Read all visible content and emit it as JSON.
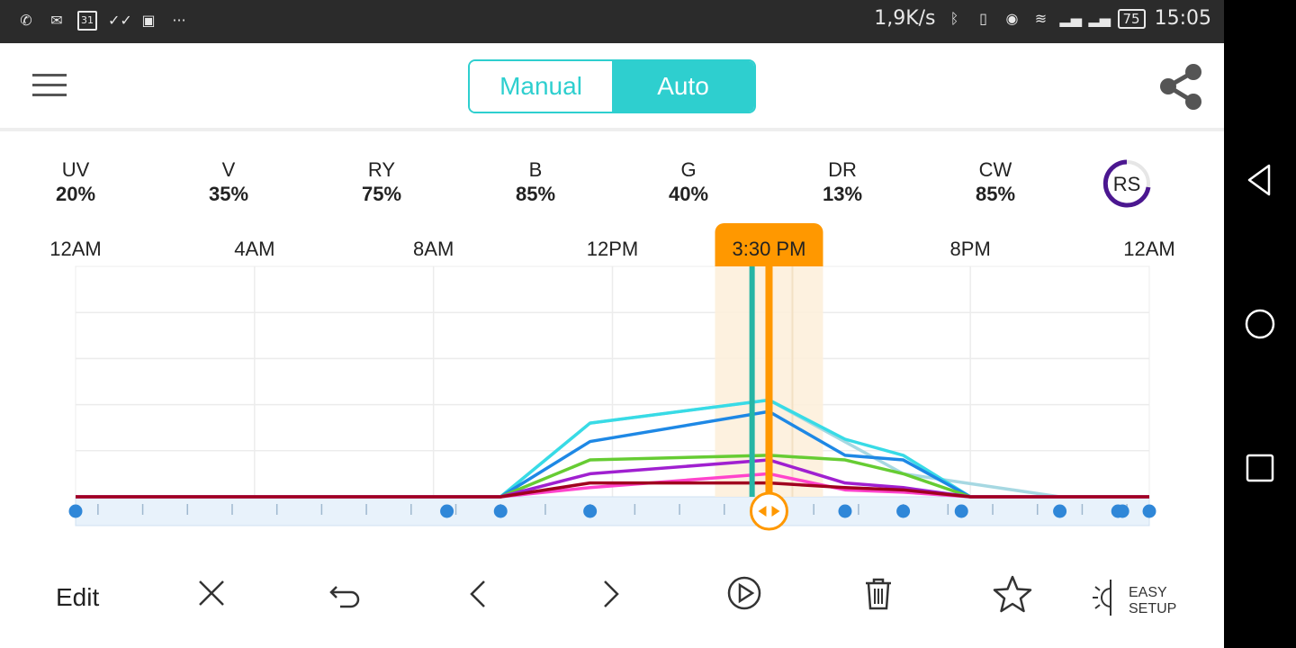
{
  "status_bar": {
    "left_icons": [
      "phone-wifi-icon",
      "mail-check-icon",
      "calendar-31-icon",
      "double-check-icon",
      "calendar-icon",
      "more-dots-icon"
    ],
    "calendar_day": "31",
    "net_speed": "1,9K/s",
    "battery": "75",
    "time": "15:05"
  },
  "app_bar": {
    "mode_manual": "Manual",
    "mode_auto": "Auto",
    "selected_mode": "Auto",
    "accent_color": "#2ecfcf"
  },
  "channels": [
    {
      "name": "UV",
      "value": "20%"
    },
    {
      "name": "V",
      "value": "35%"
    },
    {
      "name": "RY",
      "value": "75%"
    },
    {
      "name": "B",
      "value": "85%"
    },
    {
      "name": "G",
      "value": "40%"
    },
    {
      "name": "DR",
      "value": "13%"
    },
    {
      "name": "CW",
      "value": "85%"
    }
  ],
  "rs_badge": "RS",
  "chart_data": {
    "type": "line",
    "x_ticks": [
      "12AM",
      "4AM",
      "8AM",
      "12PM",
      "8PM",
      "12AM"
    ],
    "cursor_time": "3:30 PM",
    "y_range": [
      0,
      100
    ],
    "series": [
      {
        "color": "#a6d8e2",
        "points": [
          [
            0,
            0
          ],
          [
            9.5,
            0
          ],
          [
            11.5,
            32
          ],
          [
            15.5,
            42
          ],
          [
            18.5,
            10
          ],
          [
            22,
            0
          ],
          [
            24,
            0
          ]
        ]
      },
      {
        "color": "#38dbe6",
        "points": [
          [
            0,
            0
          ],
          [
            9.5,
            0
          ],
          [
            11.5,
            32
          ],
          [
            15.5,
            42
          ],
          [
            17.2,
            25
          ],
          [
            18.5,
            18
          ],
          [
            20,
            0
          ],
          [
            24,
            0
          ]
        ]
      },
      {
        "color": "#1e88e5",
        "points": [
          [
            0,
            0
          ],
          [
            9.5,
            0
          ],
          [
            11.5,
            24
          ],
          [
            15.5,
            37
          ],
          [
            17.2,
            18
          ],
          [
            18.5,
            16
          ],
          [
            20,
            0
          ],
          [
            24,
            0
          ]
        ]
      },
      {
        "color": "#66cc33",
        "points": [
          [
            0,
            0
          ],
          [
            9.5,
            0
          ],
          [
            11.5,
            16
          ],
          [
            15.5,
            18
          ],
          [
            17.2,
            16
          ],
          [
            18.5,
            10
          ],
          [
            20,
            0
          ],
          [
            24,
            0
          ]
        ]
      },
      {
        "color": "#a020d0",
        "points": [
          [
            0,
            0
          ],
          [
            9.5,
            0
          ],
          [
            11.5,
            10
          ],
          [
            15.5,
            16
          ],
          [
            17.2,
            6
          ],
          [
            18.5,
            4
          ],
          [
            20,
            0
          ],
          [
            24,
            0
          ]
        ]
      },
      {
        "color": "#ff44cc",
        "points": [
          [
            0,
            0
          ],
          [
            9.5,
            0
          ],
          [
            11.5,
            4
          ],
          [
            15.5,
            10
          ],
          [
            17.2,
            3
          ],
          [
            18.5,
            2
          ],
          [
            20,
            0
          ],
          [
            24,
            0
          ]
        ]
      },
      {
        "color": "#a0001e",
        "points": [
          [
            0,
            0
          ],
          [
            9.5,
            0
          ],
          [
            11.5,
            6
          ],
          [
            15.5,
            6
          ],
          [
            17.2,
            4
          ],
          [
            18.5,
            3
          ],
          [
            20,
            0
          ],
          [
            24,
            0
          ]
        ]
      }
    ],
    "keyframes": [
      0,
      8.3,
      9.5,
      11.5,
      15.5,
      17.2,
      18.5,
      19.8,
      22,
      23.3,
      23.4,
      24
    ],
    "cursor_color": "#ff9800",
    "teal_marker_time": 15.0
  },
  "toolbar": {
    "edit_label": "Edit",
    "easy_setup_line1": "EASY",
    "easy_setup_line2": "SETUP"
  }
}
